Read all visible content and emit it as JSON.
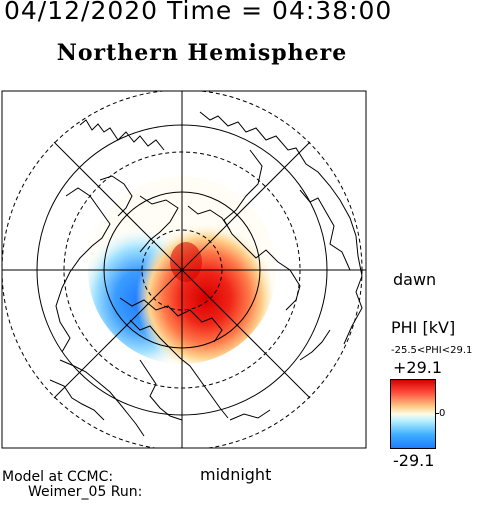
{
  "header": "04/12/2020 Time = 04:38:00",
  "subtitle": "Northern Hemisphere",
  "map": {
    "projection": "polar",
    "labels": {
      "dawn": "dawn",
      "midnight": "midnight"
    }
  },
  "colorbar": {
    "title": "PHI [kV]",
    "range_text": "-25.5<PHI<29.1",
    "max_label": "+29.1",
    "zero_label": "0",
    "min_label": "-29.1",
    "colors": {
      "max": "#d60000",
      "mid": "#ffffff",
      "min": "#1e7cff"
    }
  },
  "model": {
    "line1": "Model at CCMC:",
    "line2": "Weimer_05 Run:"
  }
}
